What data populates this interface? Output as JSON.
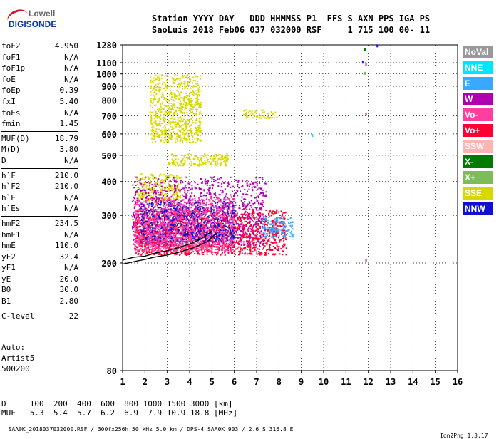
{
  "logo": {
    "top": "Lowell",
    "bottom": "DIGISONDE"
  },
  "header": {
    "line1": "Station YYYY DAY   DDD HHMMSS P1  FFS S AXN PPS IGA PS",
    "line2": "SaoLuis 2018 Feb06 037 032000 RSF     1 715 100 00- 11"
  },
  "params": {
    "group1": [
      {
        "name": "foF2",
        "value": "4.950"
      },
      {
        "name": "foF1",
        "value": "N/A"
      },
      {
        "name": "foF1p",
        "value": "N/A"
      },
      {
        "name": "foE",
        "value": "N/A"
      },
      {
        "name": "foEp",
        "value": "0.39"
      },
      {
        "name": "fxI",
        "value": "5.40"
      },
      {
        "name": "foEs",
        "value": "N/A"
      },
      {
        "name": "fmin",
        "value": "1.45"
      }
    ],
    "group2": [
      {
        "name": "MUF(D)",
        "value": "18.79"
      },
      {
        "name": "M(D)",
        "value": "3.80"
      },
      {
        "name": "D",
        "value": "N/A"
      }
    ],
    "group3": [
      {
        "name": "h`F",
        "value": "210.0"
      },
      {
        "name": "h`F2",
        "value": "210.0"
      },
      {
        "name": "h`E",
        "value": "N/A"
      },
      {
        "name": "h`Es",
        "value": "N/A"
      }
    ],
    "group4": [
      {
        "name": "hmF2",
        "value": "234.5"
      },
      {
        "name": "hmF1",
        "value": "N/A"
      },
      {
        "name": "hmE",
        "value": "110.0"
      },
      {
        "name": "yF2",
        "value": "32.4"
      },
      {
        "name": "yF1",
        "value": "N/A"
      },
      {
        "name": "yE",
        "value": "20.0"
      },
      {
        "name": "B0",
        "value": "30.0"
      },
      {
        "name": "B1",
        "value": "2.80"
      }
    ],
    "group5": [
      {
        "name": "C-level",
        "value": "22"
      }
    ]
  },
  "auto": {
    "line1": "Auto:",
    "line2": "Artist5",
    "line3": "500200"
  },
  "legend": [
    {
      "label": "NoVal",
      "color": "#999999"
    },
    {
      "label": "NNE",
      "color": "#00e5ff"
    },
    {
      "label": "E",
      "color": "#39a8ff"
    },
    {
      "label": "W",
      "color": "#b000b0"
    },
    {
      "label": "Vo-",
      "color": "#ff3fa0"
    },
    {
      "label": "Vo+",
      "color": "#ff0033"
    },
    {
      "label": "SSW",
      "color": "#ffb4b4"
    },
    {
      "label": "X-",
      "color": "#007a00"
    },
    {
      "label": "X+",
      "color": "#7cbd5a"
    },
    {
      "label": "SSE",
      "color": "#d8d800"
    },
    {
      "label": "NNW",
      "color": "#1010d0"
    }
  ],
  "footer": {
    "line1": "D     100  200  400  600  800 1000 1500 3000 [km]",
    "line2": "MUF   5.3  5.4  5.7  6.2  6.9  7.9 10.9 18.8 [MHz]",
    "line3": "SAA0K_2018037032000.RSF / 300fx256h 50 kHz 5.0 km / DPS-4 SAA0K 903 / 2.6 S 315.8 E",
    "version": "Ion2Png 1.3.17"
  },
  "chart_data": {
    "type": "scatter",
    "xlabel": "",
    "ylabel": "",
    "xlim": [
      1,
      16
    ],
    "ylim": [
      80,
      1280
    ],
    "y_scale": "log",
    "grid": true,
    "x_ticks": [
      "1",
      "2",
      "3",
      "4",
      "5",
      "6",
      "7",
      "8",
      "9",
      "10",
      "11",
      "12",
      "13",
      "14",
      "15",
      "16"
    ],
    "y_ticks": [
      {
        "value": 1280,
        "label": "1280"
      },
      {
        "value": 1100,
        "label": "1100"
      },
      {
        "value": 1000,
        "label": "1000"
      },
      {
        "value": 900,
        "label": "900"
      },
      {
        "value": 800,
        "label": "800"
      },
      {
        "value": 700,
        "label": "700"
      },
      {
        "value": 600,
        "label": "600"
      },
      {
        "value": 500,
        "label": "500"
      },
      {
        "value": 400,
        "label": "400"
      },
      {
        "value": 300,
        "label": "300"
      },
      {
        "value": 200,
        "label": "200"
      },
      {
        "value": 80,
        "label": "80"
      }
    ],
    "echo_regions": [
      {
        "series": "SSE",
        "x": [
          2.2,
          4.5
        ],
        "y": [
          560,
          1000
        ]
      },
      {
        "series": "SSE",
        "x": [
          1.6,
          3.6
        ],
        "y": [
          340,
          430
        ]
      },
      {
        "series": "SSE",
        "x": [
          6.4,
          7.9
        ],
        "y": [
          690,
          740
        ]
      },
      {
        "series": "SSE",
        "x": [
          3.0,
          5.7
        ],
        "y": [
          460,
          510
        ]
      },
      {
        "series": "W",
        "x": [
          1.4,
          7.4
        ],
        "y": [
          230,
          420
        ]
      },
      {
        "series": "Vo+",
        "x": [
          1.5,
          8.3
        ],
        "y": [
          215,
          320
        ]
      },
      {
        "series": "NNW",
        "x": [
          1.8,
          6.0
        ],
        "y": [
          240,
          340
        ]
      },
      {
        "series": "Vo-",
        "x": [
          1.5,
          6.0
        ],
        "y": [
          220,
          350
        ]
      },
      {
        "series": "E",
        "x": [
          7.2,
          8.6
        ],
        "y": [
          250,
          300
        ]
      }
    ],
    "traces": [
      {
        "name": "O-trace",
        "x": [
          1.0,
          1.5,
          2.0,
          2.5,
          3.0,
          3.5,
          4.0,
          4.5,
          5.0
        ],
        "y": [
          205,
          210,
          212,
          218,
          222,
          228,
          235,
          245,
          262
        ]
      },
      {
        "name": "X-trace",
        "x": [
          1.0,
          1.6,
          2.0,
          2.4,
          3.0,
          3.6,
          4.2,
          4.8,
          5.2
        ],
        "y": [
          198,
          203,
          206,
          210,
          214,
          220,
          228,
          240,
          258
        ]
      }
    ],
    "isolated_points": [
      {
        "series": "X-",
        "x": 11.85,
        "y": 1230
      },
      {
        "series": "NNW",
        "x": 12.4,
        "y": 1270
      },
      {
        "series": "W",
        "x": 11.9,
        "y": 1080
      },
      {
        "series": "NNE",
        "x": 9.5,
        "y": 592
      },
      {
        "series": "W",
        "x": 11.9,
        "y": 710
      },
      {
        "series": "X+",
        "x": 11.85,
        "y": 1005
      },
      {
        "series": "W",
        "x": 11.9,
        "y": 205
      },
      {
        "series": "NNW",
        "x": 11.75,
        "y": 1105
      }
    ]
  }
}
